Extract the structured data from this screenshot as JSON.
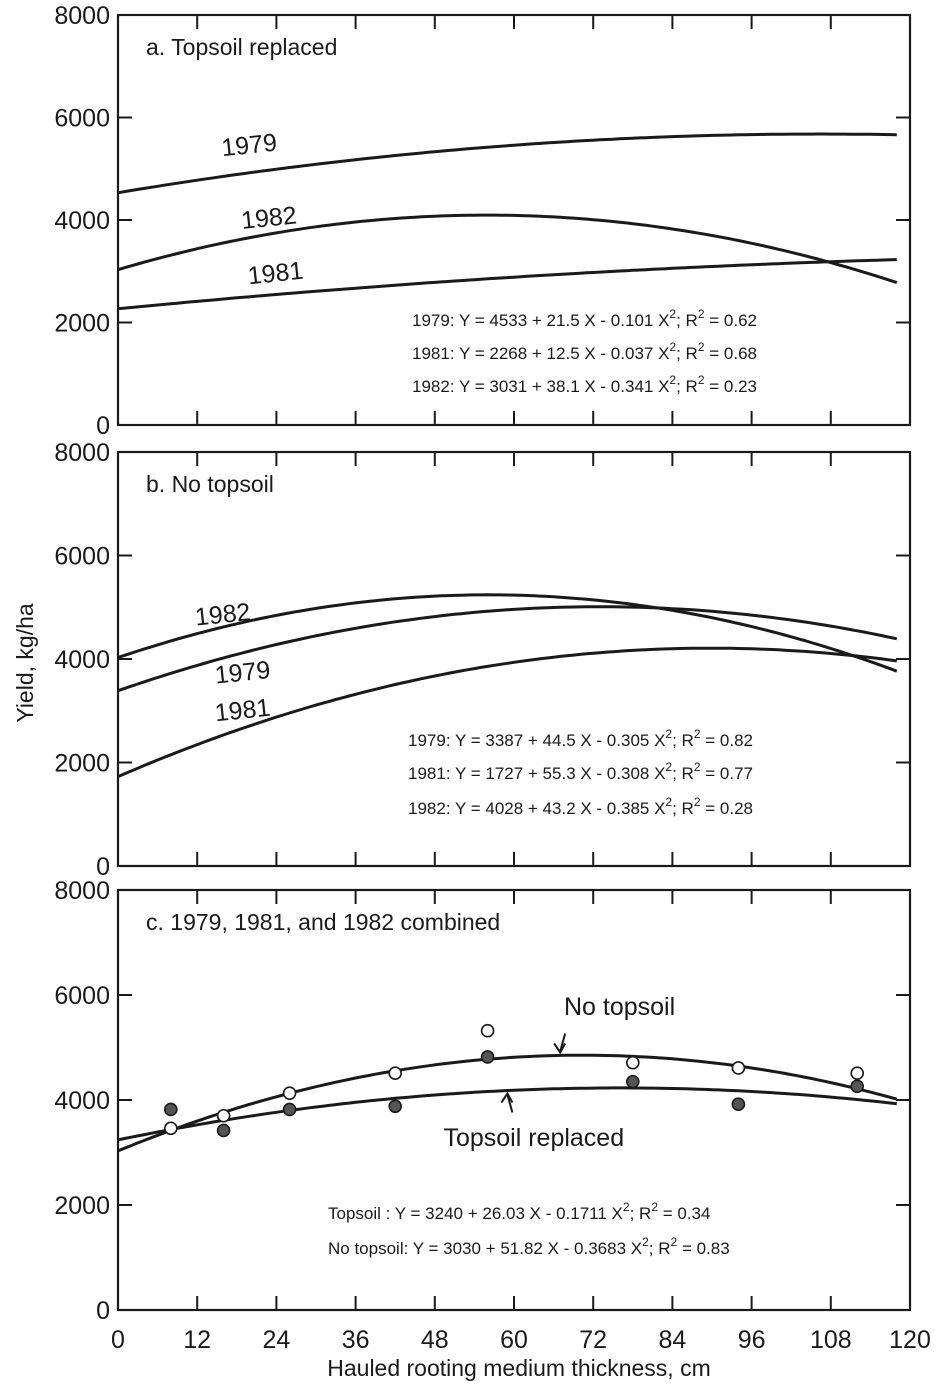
{
  "figure": {
    "ylabel": "Yield, kg/ha",
    "xlabel": "Hauled rooting medium thickness, cm"
  },
  "chart_data": [
    {
      "type": "line",
      "panel": "a",
      "title": "a. Topsoil replaced",
      "xlim": [
        0,
        120
      ],
      "ylim": [
        0,
        8000
      ],
      "x_ticks": [
        "0",
        "12",
        "24",
        "36",
        "48",
        "60",
        "72",
        "84",
        "96",
        "108",
        "120"
      ],
      "y_ticks": [
        "0",
        "2000",
        "4000",
        "6000",
        "8000"
      ],
      "series": [
        {
          "name": "1979",
          "coeffs": [
            4533,
            21.5,
            -0.101
          ],
          "label_x": 20,
          "label_y": 5300
        },
        {
          "name": "1982",
          "coeffs": [
            3031,
            38.1,
            -0.341
          ],
          "label_x": 23,
          "label_y": 3880
        },
        {
          "name": "1981",
          "coeffs": [
            2268,
            12.5,
            -0.037
          ],
          "label_x": 24,
          "label_y": 2800
        }
      ],
      "equations": [
        {
          "lead": "1979: Y = 4533 + 21.5 X - 0.101 X",
          "mid": "; R",
          "tail": " = 0.62"
        },
        {
          "lead": "1981: Y = 2268 + 12.5 X - 0.037 X",
          "mid": "; R",
          "tail": " = 0.68"
        },
        {
          "lead": "1982: Y = 3031 + 38.1 X - 0.341 X",
          "mid": "; R",
          "tail": " = 0.23"
        }
      ],
      "points": []
    },
    {
      "type": "line",
      "panel": "b",
      "title": "b. No topsoil",
      "xlim": [
        0,
        120
      ],
      "ylim": [
        0,
        8000
      ],
      "x_ticks": [
        "0",
        "12",
        "24",
        "36",
        "48",
        "60",
        "72",
        "84",
        "96",
        "108",
        "120"
      ],
      "y_ticks": [
        "0",
        "2000",
        "4000",
        "6000",
        "8000"
      ],
      "series": [
        {
          "name": "1982",
          "coeffs": [
            4028,
            43.2,
            -0.385
          ],
          "label_x": 16,
          "label_y": 4700
        },
        {
          "name": "1979",
          "coeffs": [
            3387,
            44.5,
            -0.305
          ],
          "label_x": 19,
          "label_y": 3580
        },
        {
          "name": "1981",
          "coeffs": [
            1727,
            55.3,
            -0.308
          ],
          "label_x": 19,
          "label_y": 2850
        }
      ],
      "equations": [
        {
          "lead": "1979: Y = 3387 + 44.5 X - 0.305 X",
          "mid": "; R",
          "tail": " = 0.82"
        },
        {
          "lead": "1981: Y = 1727 + 55.3 X - 0.308 X",
          "mid": "; R",
          "tail": " = 0.77"
        },
        {
          "lead": "1982: Y = 4028 + 43.2 X - 0.385 X",
          "mid": "; R",
          "tail": " = 0.28"
        }
      ],
      "points": []
    },
    {
      "type": "scatter",
      "panel": "c",
      "title": "c. 1979, 1981, and 1982 combined",
      "xlim": [
        0,
        120
      ],
      "ylim": [
        0,
        8000
      ],
      "x_ticks": [
        "0",
        "12",
        "24",
        "36",
        "48",
        "60",
        "72",
        "84",
        "96",
        "108",
        "120"
      ],
      "y_ticks": [
        "0",
        "2000",
        "4000",
        "6000",
        "8000"
      ],
      "series": [
        {
          "name": "No topsoil",
          "coeffs": [
            3030,
            51.82,
            -0.3683
          ],
          "label_x": 76,
          "label_y": 5620,
          "arrow_x": 67,
          "filled": false
        },
        {
          "name": "Topsoil replaced",
          "coeffs": [
            3240,
            26.03,
            -0.1711
          ],
          "label_x": 63,
          "label_y": 3120,
          "arrow_x": 59,
          "filled": true
        }
      ],
      "equations": [
        {
          "lead": "Topsoil     : Y = 3240 + 26.03 X - 0.1711 X",
          "mid": "; R",
          "tail": " = 0.34"
        },
        {
          "lead": "No topsoil: Y = 3030 + 51.82 X - 0.3683 X",
          "mid": "; R",
          "tail": " = 0.83"
        }
      ],
      "points": [
        {
          "series": "Topsoil replaced",
          "x": [
            8,
            16,
            26,
            42,
            56,
            78,
            94,
            112
          ],
          "y": [
            3820,
            3420,
            3820,
            3880,
            4820,
            4350,
            3920,
            4260
          ]
        },
        {
          "series": "No topsoil",
          "x": [
            8,
            16,
            26,
            42,
            56,
            78,
            94,
            112
          ],
          "y": [
            3460,
            3700,
            4130,
            4510,
            5320,
            4710,
            4610,
            4510
          ]
        }
      ]
    }
  ]
}
